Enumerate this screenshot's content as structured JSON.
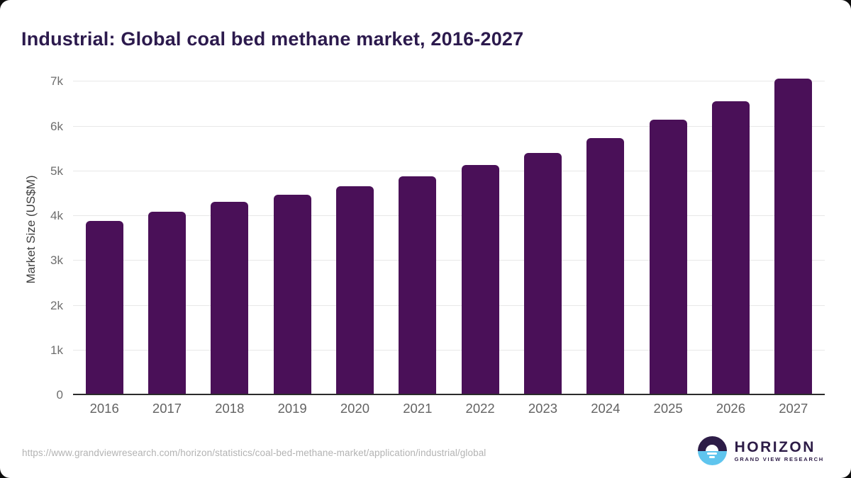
{
  "title": "Industrial: Global coal bed methane market, 2016-2027",
  "chart_data": {
    "type": "bar",
    "title": "Industrial: Global coal bed methane market, 2016-2027",
    "categories": [
      "2016",
      "2017",
      "2018",
      "2019",
      "2020",
      "2021",
      "2022",
      "2023",
      "2024",
      "2025",
      "2026",
      "2027"
    ],
    "values": [
      3890,
      4100,
      4320,
      4480,
      4665,
      4885,
      5135,
      5405,
      5745,
      6145,
      6570,
      7070
    ],
    "xlabel": "",
    "ylabel": "Market Size (US$M)",
    "ylim": [
      0,
      7400
    ],
    "ytick_values": [
      0,
      1000,
      2000,
      3000,
      4000,
      5000,
      6000,
      7000
    ],
    "ytick_labels": [
      "0",
      "1k",
      "2k",
      "3k",
      "4k",
      "5k",
      "6k",
      "7k"
    ],
    "grid": "horizontal",
    "legend": "none",
    "bar_color": "#4a1058"
  },
  "footer": {
    "source_url": "https://www.grandviewresearch.com/horizon/statistics/coal-bed-methane-market/application/industrial/global",
    "logo": {
      "name": "HORIZON",
      "subtitle": "GRAND VIEW RESEARCH"
    }
  },
  "colors": {
    "bar": "#4a1058",
    "title_text": "#2c1a4d",
    "logo_purple": "#2d1c47",
    "logo_blue": "#5fc5ee",
    "gridline": "#e8e8e8",
    "axis_line": "#2b2b2b",
    "tick_text": "#6e6e6e",
    "url_text": "#b3b3b3"
  }
}
